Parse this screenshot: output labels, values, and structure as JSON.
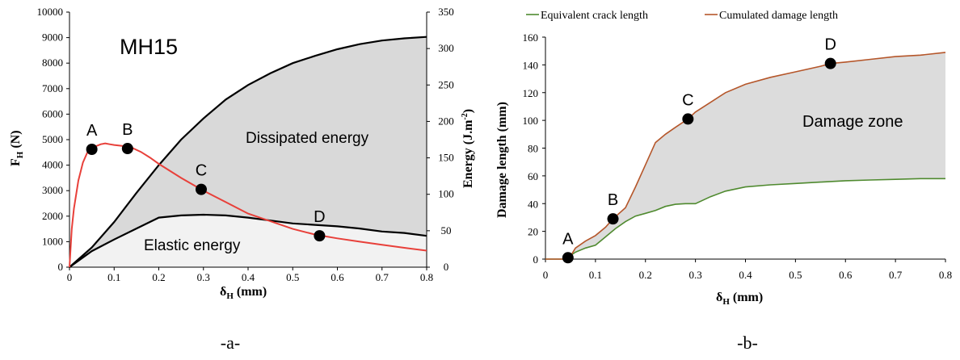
{
  "chart_data": [
    {
      "type": "line",
      "caption": "-a-",
      "annotation_title": "MH15",
      "xlabel": "δ",
      "xlabel_sub": "H",
      "xlabel_unit": " (mm)",
      "ylabel": "F",
      "ylabel_sub": "H",
      "ylabel_unit": " (N)",
      "y2label": "Energy (J.m",
      "y2label_sup": "-2",
      "y2label_end": ")",
      "xlim": [
        0,
        0.8
      ],
      "ylim": [
        0,
        10000
      ],
      "y2lim": [
        0,
        350
      ],
      "xticks": [
        "0",
        "0.1",
        "0.2",
        "0.3",
        "0.4",
        "0.5",
        "0.6",
        "0.7",
        "0.8"
      ],
      "yticks": [
        "0",
        "1000",
        "2000",
        "3000",
        "4000",
        "5000",
        "6000",
        "7000",
        "8000",
        "9000",
        "10000"
      ],
      "y2ticks": [
        "0",
        "50",
        "100",
        "150",
        "200",
        "250",
        "300",
        "350"
      ],
      "region_labels": {
        "dissipated": "Dissipated energy",
        "elastic": "Elastic energy"
      },
      "colors": {
        "force": "#e8403a",
        "energy": "#000000",
        "dissipated_fill": "#d9d9d9",
        "elastic_fill": "#f2f2f2",
        "title": "#d9534f"
      },
      "series": [
        {
          "key": "force",
          "axis": "left",
          "x": [
            0,
            0.005,
            0.01,
            0.02,
            0.03,
            0.04,
            0.05,
            0.06,
            0.07,
            0.08,
            0.09,
            0.1,
            0.12,
            0.14,
            0.16,
            0.18,
            0.2,
            0.25,
            0.3,
            0.35,
            0.4,
            0.45,
            0.5,
            0.55,
            0.6,
            0.65,
            0.7,
            0.75,
            0.8
          ],
          "y": [
            0,
            1500,
            2300,
            3400,
            4100,
            4500,
            4650,
            4750,
            4820,
            4850,
            4820,
            4790,
            4750,
            4680,
            4520,
            4300,
            4050,
            3500,
            3000,
            2550,
            2100,
            1800,
            1500,
            1280,
            1130,
            1000,
            880,
            760,
            650
          ]
        },
        {
          "key": "total_energy",
          "axis": "right",
          "x": [
            0,
            0.05,
            0.1,
            0.15,
            0.2,
            0.25,
            0.3,
            0.35,
            0.4,
            0.45,
            0.5,
            0.55,
            0.6,
            0.65,
            0.7,
            0.75,
            0.8
          ],
          "y": [
            0,
            27,
            62,
            102,
            140,
            175,
            204,
            230,
            250,
            266,
            280,
            290,
            299,
            306,
            311,
            314,
            316
          ]
        },
        {
          "key": "elastic_energy",
          "axis": "right",
          "x": [
            0,
            0.05,
            0.1,
            0.15,
            0.2,
            0.25,
            0.3,
            0.35,
            0.4,
            0.45,
            0.5,
            0.55,
            0.6,
            0.65,
            0.7,
            0.75,
            0.8
          ],
          "y": [
            0,
            22,
            38,
            53,
            68,
            71,
            72,
            71,
            68,
            64,
            60,
            58,
            56,
            53,
            49,
            47,
            43
          ]
        }
      ],
      "points": [
        {
          "label": "A",
          "x": 0.05,
          "y": 4620
        },
        {
          "label": "B",
          "x": 0.13,
          "y": 4650
        },
        {
          "label": "C",
          "x": 0.295,
          "y": 3050
        },
        {
          "label": "D",
          "x": 0.56,
          "y": 1230
        }
      ]
    },
    {
      "type": "line",
      "caption": "-b-",
      "xlabel": "δ",
      "xlabel_sub": "H",
      "xlabel_unit": " (mm)",
      "ylabel": "Damage length (mm)",
      "xlim": [
        0,
        0.8
      ],
      "ylim": [
        0,
        160
      ],
      "xticks": [
        "0",
        "0.1",
        "0.2",
        "0.3",
        "0.4",
        "0.5",
        "0.6",
        "0.7",
        "0.8"
      ],
      "yticks": [
        "0",
        "20",
        "40",
        "60",
        "80",
        "100",
        "120",
        "140",
        "160"
      ],
      "region_label": "Damage zone",
      "legend_position": "top",
      "colors": {
        "crack": "#4f8a2f",
        "damage": "#b5562a",
        "zone_fill": "#dcdcdc"
      },
      "series": [
        {
          "name": "Equivalent crack length",
          "key": "crack",
          "x": [
            0,
            0.04,
            0.06,
            0.08,
            0.1,
            0.12,
            0.14,
            0.16,
            0.18,
            0.2,
            0.22,
            0.24,
            0.26,
            0.28,
            0.3,
            0.33,
            0.36,
            0.4,
            0.45,
            0.5,
            0.55,
            0.6,
            0.65,
            0.7,
            0.75,
            0.8
          ],
          "y": [
            0,
            0,
            5,
            8,
            10,
            16,
            22,
            27,
            31,
            33,
            35,
            38,
            39.5,
            40,
            40,
            45,
            49,
            52,
            53.5,
            54.5,
            55.5,
            56.5,
            57,
            57.5,
            58,
            58
          ]
        },
        {
          "name": "Cumulated damage length",
          "key": "damage",
          "x": [
            0,
            0.04,
            0.05,
            0.06,
            0.08,
            0.1,
            0.12,
            0.135,
            0.16,
            0.18,
            0.2,
            0.22,
            0.24,
            0.26,
            0.285,
            0.3,
            0.33,
            0.36,
            0.4,
            0.45,
            0.5,
            0.55,
            0.57,
            0.6,
            0.65,
            0.7,
            0.75,
            0.8
          ],
          "y": [
            0,
            0,
            2,
            8,
            13,
            17,
            23,
            29,
            37,
            52,
            68,
            84,
            90,
            95,
            101,
            106,
            113,
            120,
            126,
            131,
            135,
            139,
            141,
            142,
            144,
            146,
            147,
            149
          ]
        }
      ],
      "points": [
        {
          "label": "A",
          "x": 0.045,
          "y": 1
        },
        {
          "label": "B",
          "x": 0.135,
          "y": 29
        },
        {
          "label": "C",
          "x": 0.285,
          "y": 101
        },
        {
          "label": "D",
          "x": 0.57,
          "y": 141
        }
      ]
    }
  ]
}
